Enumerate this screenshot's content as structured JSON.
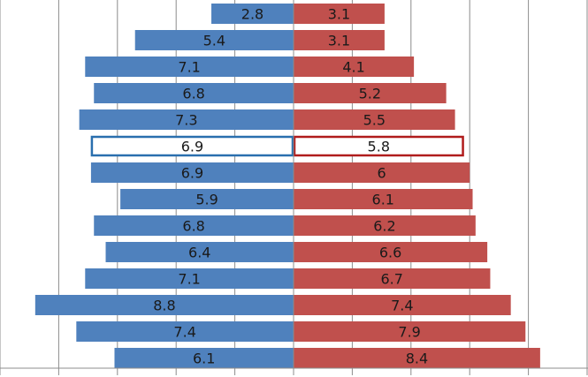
{
  "chart_data": {
    "type": "bar",
    "orientation": "horizontal-diverging",
    "series": [
      {
        "side": "left",
        "color": "#4f81bd",
        "values": [
          2.8,
          5.4,
          7.1,
          6.8,
          7.3,
          6.9,
          6.9,
          5.9,
          6.8,
          6.4,
          7.1,
          8.8,
          7.4,
          6.1
        ]
      },
      {
        "side": "right",
        "color": "#c0504d",
        "values": [
          3.1,
          3.1,
          4.1,
          5.2,
          5.5,
          5.8,
          6.0,
          6.1,
          6.2,
          6.6,
          6.7,
          7.4,
          7.9,
          8.4
        ]
      }
    ],
    "value_labels": {
      "left": [
        "2.8",
        "5.4",
        "7.1",
        "6.8",
        "7.3",
        "6.9",
        "6.9",
        "5.9",
        "6.8",
        "6.4",
        "7.1",
        "8.8",
        "7.4",
        "6.1"
      ],
      "right": [
        "3.1",
        "3.1",
        "4.1",
        "5.2",
        "5.5",
        "5.8",
        "6",
        "6.1",
        "6.2",
        "6.6",
        "6.7",
        "7.4",
        "7.9",
        "8.4"
      ]
    },
    "highlight_row_index": 5,
    "highlight_colors": {
      "left": "#2a6fae",
      "right": "#b01c1c"
    },
    "xlim": [
      -10,
      10
    ],
    "grid": "vertical gridlines at every 2 units",
    "axis_labels_visible": false
  }
}
